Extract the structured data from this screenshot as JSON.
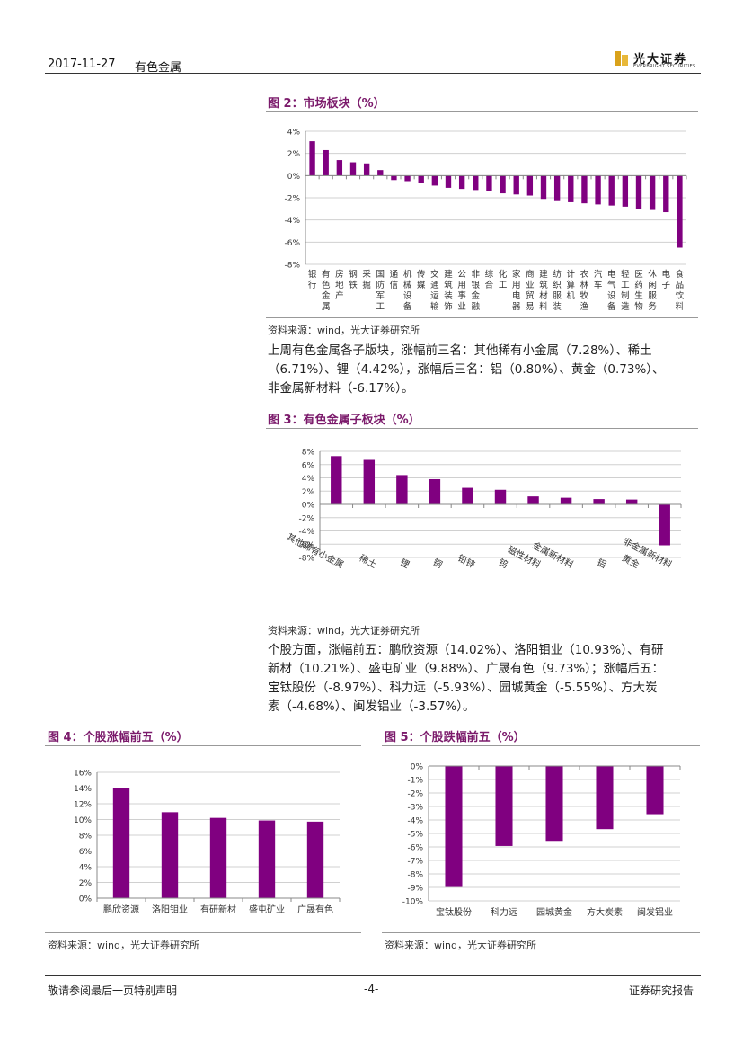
{
  "header": {
    "date": "2017-11-27",
    "section": "有色金属",
    "brand_cn": "光大证券",
    "brand_en": "EVERBRIGHT SECURITIES"
  },
  "colors": {
    "accent": "#800080",
    "title": "#7b1a6b"
  },
  "fig2": {
    "title": "图 2：市场板块（%）",
    "source": "资料来源：wind，光大证券研究所"
  },
  "para1": {
    "lines": [
      "上周有色金属各子版块，涨幅前三名：其他稀有小金属（7.28%）、稀土",
      "（6.71%）、锂（4.42%），涨幅后三名：铝（0.80%）、黄金（0.73%）、",
      "非金属新材料（-6.17%）。"
    ]
  },
  "fig3": {
    "title": "图 3：有色金属子板块（%）",
    "source": "资料来源：wind，光大证券研究所"
  },
  "para2": {
    "lines": [
      "个股方面，涨幅前五：鹏欣资源（14.02%）、洛阳钼业（10.93%）、有研",
      "新材（10.21%）、盛屯矿业（9.88%）、广晟有色（9.73%）；涨幅后五：",
      "宝钛股份（-8.97%）、科力远（-5.93%）、园城黄金（-5.55%）、方大炭",
      "素（-4.68%）、闽发铝业（-3.57%）。"
    ]
  },
  "fig4": {
    "title": "图 4：个股涨幅前五（%）",
    "source": "资料来源：wind，光大证券研究所"
  },
  "fig5": {
    "title": "图 5：个股跌幅前五（%）",
    "source": "资料来源：wind，光大证券研究所"
  },
  "footer": {
    "left": "敬请参阅最后一页特别声明",
    "center": "-4-",
    "right": "证券研究报告"
  },
  "chart_data": [
    {
      "id": "fig2",
      "type": "bar",
      "title": "图 2：市场板块（%）",
      "categories": [
        "银行",
        "有色金属",
        "房地产",
        "钢铁",
        "采掘",
        "国防军工",
        "通信",
        "机械设备",
        "传媒",
        "交通运输",
        "建筑装饰",
        "公用事业",
        "非银金融",
        "综合",
        "化工",
        "家用电器",
        "商业贸易",
        "建筑材料",
        "纺织服装",
        "计算机",
        "农林牧渔",
        "汽车",
        "电气设备",
        "轻工制造",
        "医药生物",
        "休闲服务",
        "电子",
        "食品饮料"
      ],
      "values": [
        3.1,
        2.3,
        1.4,
        1.2,
        1.1,
        0.5,
        -0.4,
        -0.5,
        -0.7,
        -0.9,
        -1.1,
        -1.2,
        -1.3,
        -1.4,
        -1.6,
        -1.7,
        -1.8,
        -2.1,
        -2.3,
        -2.4,
        -2.5,
        -2.6,
        -2.7,
        -2.8,
        -3.0,
        -3.1,
        -3.3,
        -6.5
      ],
      "ylim": [
        -8,
        4
      ],
      "yticks": [
        4,
        2,
        0,
        -2,
        -4,
        -6,
        -8
      ],
      "ytick_labels": [
        "4%",
        "2%",
        "0%",
        "-2%",
        "-4%",
        "-6%",
        "-8%"
      ]
    },
    {
      "id": "fig3",
      "type": "bar",
      "title": "图 3：有色金属子板块（%）",
      "categories": [
        "其他稀有小金属",
        "稀土",
        "锂",
        "铜",
        "铅锌",
        "钨",
        "磁性材料",
        "金属新材料",
        "铝",
        "黄金",
        "非金属新材料"
      ],
      "values": [
        7.28,
        6.71,
        4.42,
        3.8,
        2.5,
        2.2,
        1.2,
        1.0,
        0.8,
        0.73,
        -6.17
      ],
      "ylim": [
        -8,
        8
      ],
      "yticks": [
        8,
        6,
        4,
        2,
        0,
        -2,
        -4,
        -6,
        -8
      ],
      "ytick_labels": [
        "8%",
        "6%",
        "4%",
        "2%",
        "0%",
        "-2%",
        "-4%",
        "-6%",
        "-8%"
      ]
    },
    {
      "id": "fig4",
      "type": "bar",
      "title": "图 4：个股涨幅前五（%）",
      "categories": [
        "鹏欣资源",
        "洛阳钼业",
        "有研新材",
        "盛屯矿业",
        "广晟有色"
      ],
      "values": [
        14.02,
        10.93,
        10.21,
        9.88,
        9.73
      ],
      "ylim": [
        0,
        16
      ],
      "yticks": [
        16,
        14,
        12,
        10,
        8,
        6,
        4,
        2,
        0
      ],
      "ytick_labels": [
        "16%",
        "14%",
        "12%",
        "10%",
        "8%",
        "6%",
        "4%",
        "2%",
        "0%"
      ]
    },
    {
      "id": "fig5",
      "type": "bar",
      "title": "图 5：个股跌幅前五（%）",
      "categories": [
        "宝钛股份",
        "科力远",
        "园城黄金",
        "方大炭素",
        "闽发铝业"
      ],
      "values": [
        -8.97,
        -5.93,
        -5.55,
        -4.68,
        -3.57
      ],
      "ylim": [
        -10,
        0
      ],
      "yticks": [
        0,
        -1,
        -2,
        -3,
        -4,
        -5,
        -6,
        -7,
        -8,
        -9,
        -10
      ],
      "ytick_labels": [
        "0%",
        "-1%",
        "-2%",
        "-3%",
        "-4%",
        "-5%",
        "-6%",
        "-7%",
        "-8%",
        "-9%",
        "-10%"
      ]
    }
  ]
}
